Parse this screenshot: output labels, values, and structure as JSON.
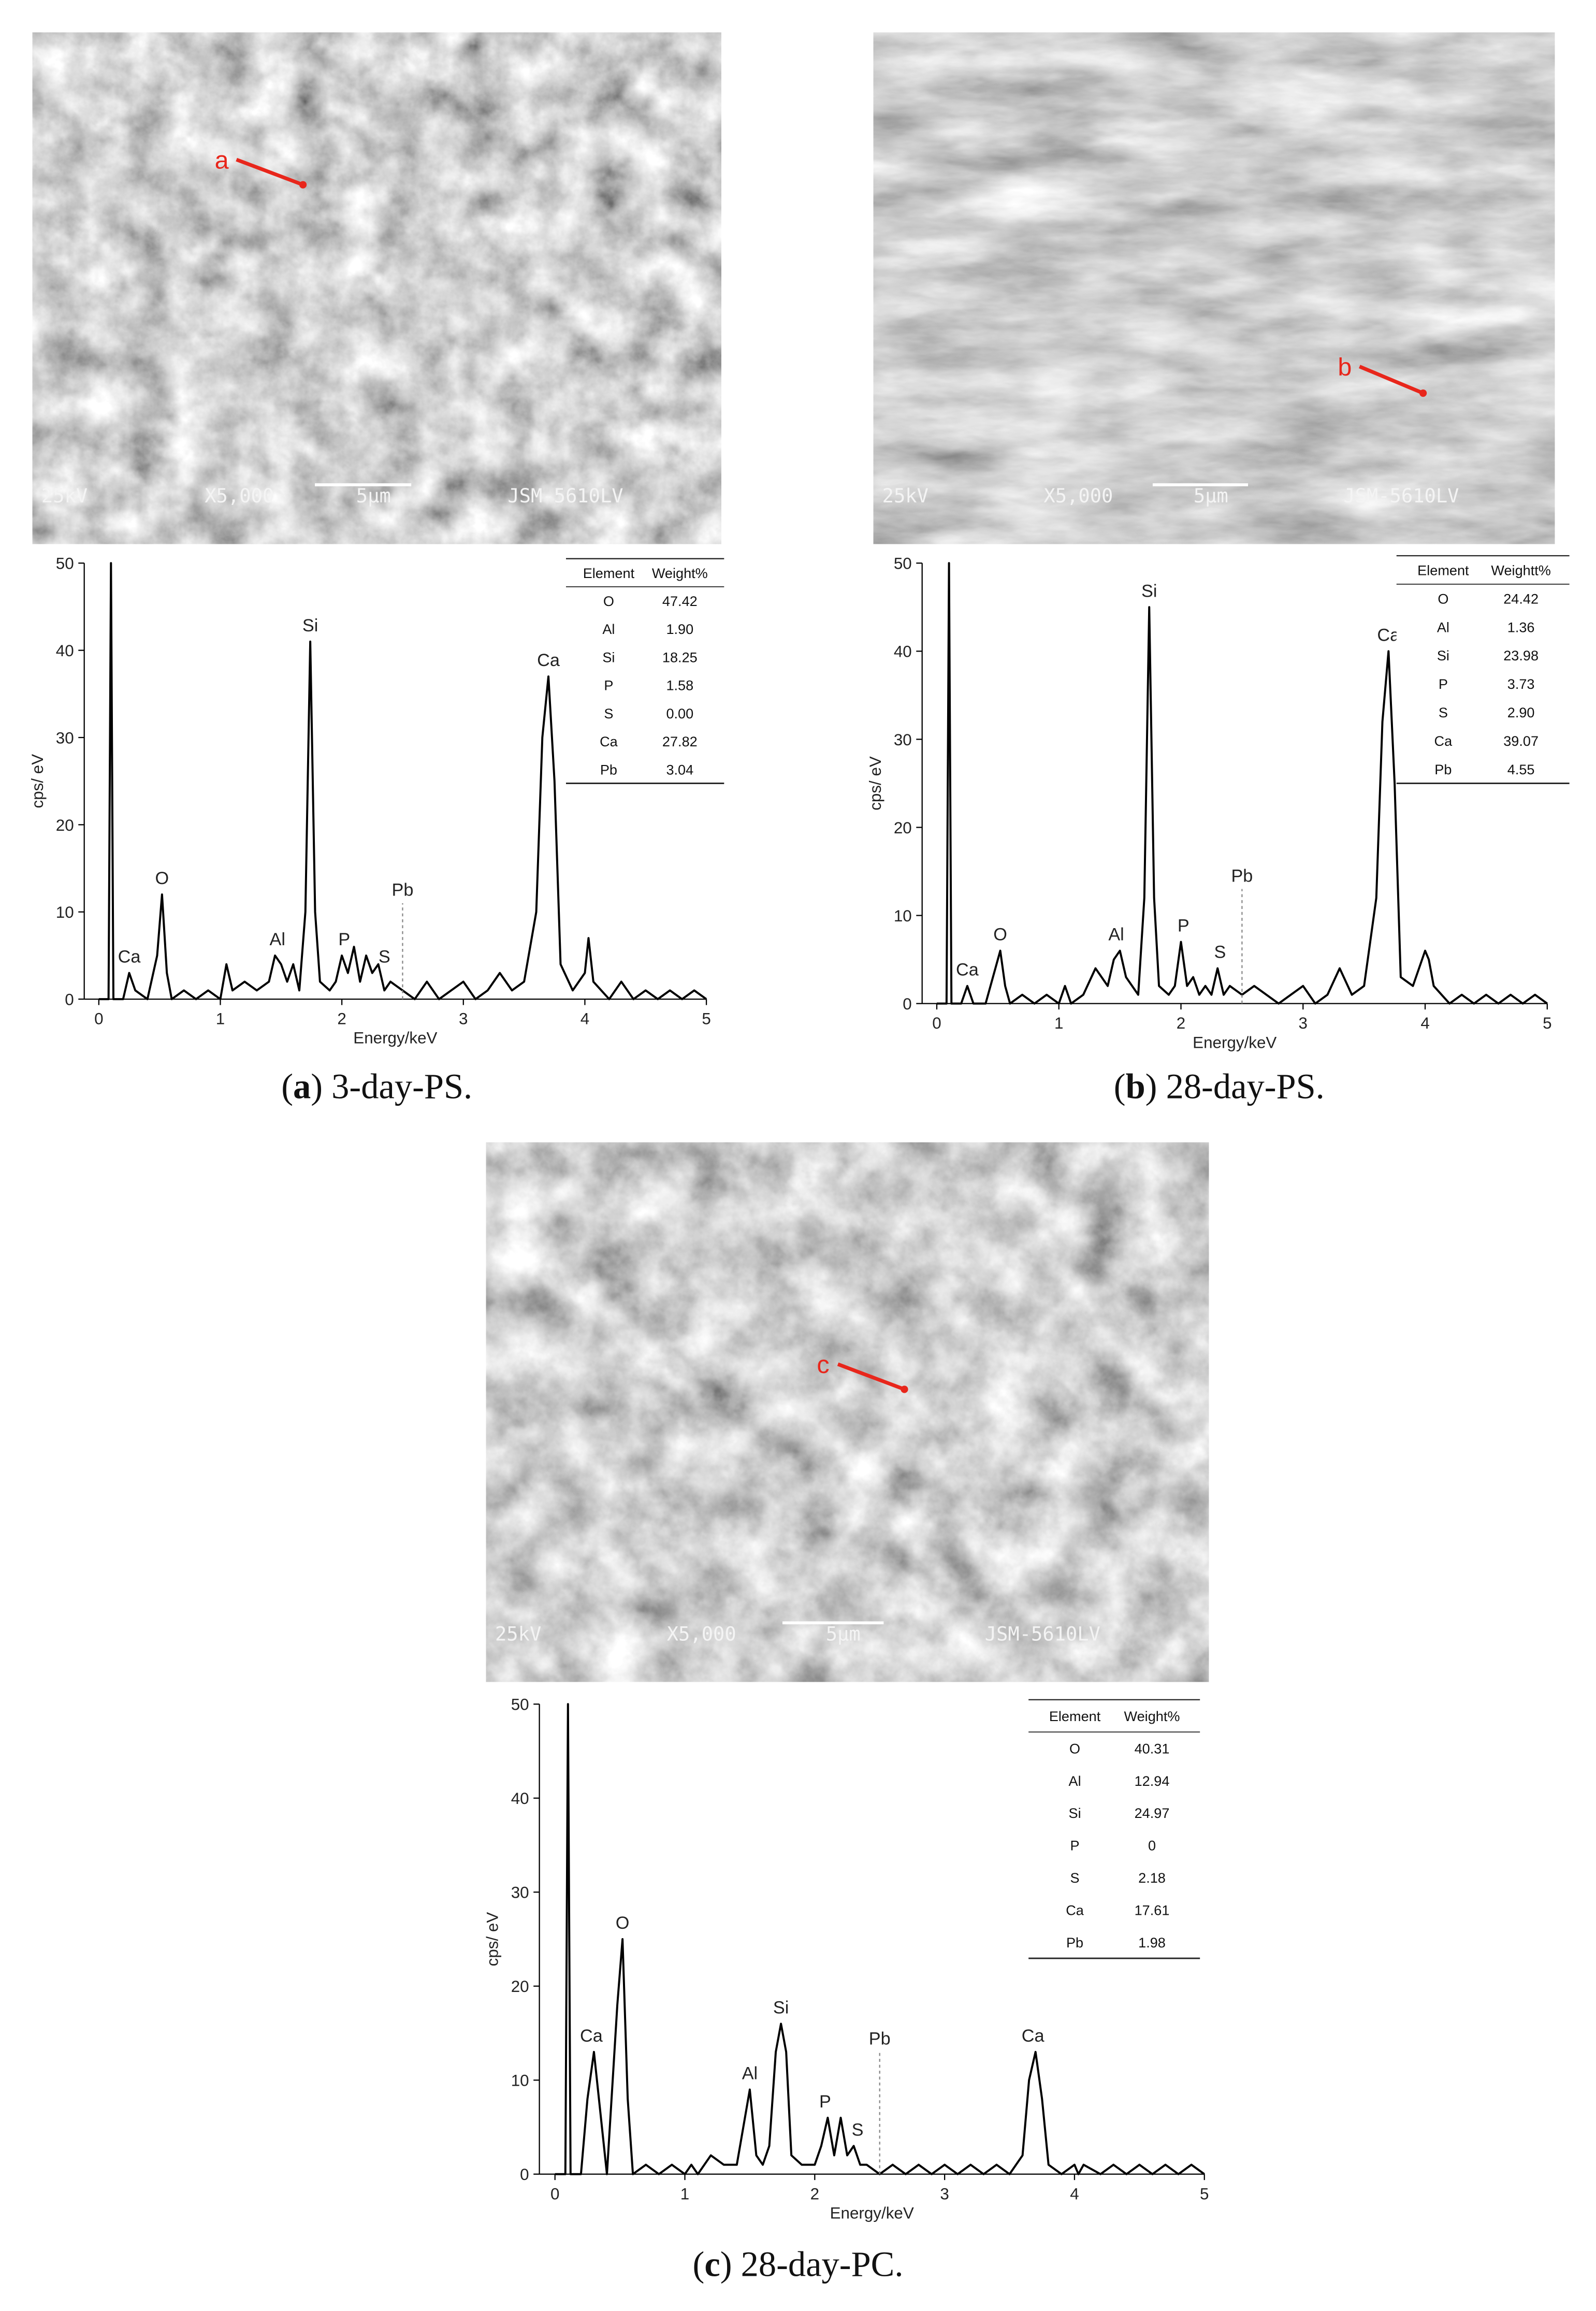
{
  "chart_data": [
    {
      "type": "line",
      "caption": [
        "(",
        "a",
        ") 3-day-PS."
      ],
      "sem": {
        "voltage": "25kV",
        "magnification": "X5,000",
        "scale": "5μm",
        "instrument": "JSM-5610LV",
        "point": "a"
      },
      "x_label": "Energy/keV",
      "y_label": "cps/ eV",
      "color": "#000000",
      "xlim": [
        -0.12,
        5
      ],
      "ylim": [
        0,
        50
      ],
      "xticks": [
        0,
        1,
        2,
        3,
        4,
        5
      ],
      "yticks": [
        0,
        10,
        20,
        30,
        40,
        50
      ],
      "x": [
        0,
        0.08,
        0.1,
        0.12,
        0.2,
        0.25,
        0.3,
        0.4,
        0.48,
        0.52,
        0.56,
        0.6,
        0.7,
        0.8,
        0.9,
        1.0,
        1.05,
        1.1,
        1.2,
        1.3,
        1.4,
        1.45,
        1.5,
        1.55,
        1.6,
        1.65,
        1.7,
        1.74,
        1.78,
        1.82,
        1.9,
        1.95,
        2.0,
        2.05,
        2.1,
        2.15,
        2.2,
        2.25,
        2.3,
        2.35,
        2.4,
        2.5,
        2.6,
        2.7,
        2.8,
        2.9,
        3.0,
        3.1,
        3.2,
        3.3,
        3.4,
        3.5,
        3.6,
        3.65,
        3.7,
        3.75,
        3.8,
        3.9,
        4.0,
        4.03,
        4.07,
        4.2,
        4.3,
        4.4,
        4.5,
        4.6,
        4.7,
        4.8,
        4.9,
        5.0
      ],
      "values": [
        0,
        0,
        50,
        0,
        0,
        3,
        1,
        0,
        5,
        12,
        3,
        0,
        1,
        0,
        1,
        0,
        4,
        1,
        2,
        1,
        2,
        5,
        4,
        2,
        4,
        1,
        10,
        41,
        10,
        2,
        1,
        2,
        5,
        3,
        6,
        2,
        5,
        3,
        4,
        1,
        2,
        1,
        0,
        2,
        0,
        1,
        2,
        0,
        1,
        3,
        1,
        2,
        10,
        30,
        37,
        25,
        4,
        1,
        3,
        7,
        2,
        0,
        2,
        0,
        1,
        0,
        1,
        0,
        1,
        0
      ],
      "peaks": [
        {
          "text": "Ca",
          "x": 0.25,
          "y": 3
        },
        {
          "text": "O",
          "x": 0.52,
          "y": 12
        },
        {
          "text": "Al",
          "x": 1.47,
          "y": 5
        },
        {
          "text": "Si",
          "x": 1.74,
          "y": 41
        },
        {
          "text": "P",
          "x": 2.02,
          "y": 5
        },
        {
          "text": "S",
          "x": 2.35,
          "y": 3
        },
        {
          "text": "Ca",
          "x": 3.7,
          "y": 37
        }
      ],
      "marker": {
        "text": "Pb",
        "x": 2.5,
        "y": 11
      },
      "table": {
        "header": [
          "Element",
          "Weight%"
        ],
        "rows": [
          [
            "O",
            "47.42"
          ],
          [
            "Al",
            "1.90"
          ],
          [
            "Si",
            "18.25"
          ],
          [
            "P",
            "1.58"
          ],
          [
            "S",
            "0.00"
          ],
          [
            "Ca",
            "27.82"
          ],
          [
            "Pb",
            "3.04"
          ]
        ]
      }
    },
    {
      "type": "line",
      "caption": [
        "(",
        "b",
        ") 28-day-PS."
      ],
      "sem": {
        "voltage": "25kV",
        "magnification": "X5,000",
        "scale": "5μm",
        "instrument": "JSM-5610LV",
        "point": "b"
      },
      "x_label": "Energy/keV",
      "y_label": "cps/ eV",
      "color": "#000000",
      "xlim": [
        -0.12,
        5
      ],
      "ylim": [
        0,
        50
      ],
      "xticks": [
        0,
        1,
        2,
        3,
        4,
        5
      ],
      "yticks": [
        0,
        10,
        20,
        30,
        40,
        50
      ],
      "x": [
        0,
        0.08,
        0.1,
        0.12,
        0.2,
        0.25,
        0.3,
        0.4,
        0.48,
        0.52,
        0.56,
        0.6,
        0.7,
        0.8,
        0.9,
        1.0,
        1.05,
        1.1,
        1.2,
        1.3,
        1.4,
        1.45,
        1.5,
        1.55,
        1.6,
        1.65,
        1.7,
        1.74,
        1.78,
        1.82,
        1.9,
        1.95,
        2.0,
        2.05,
        2.1,
        2.15,
        2.2,
        2.25,
        2.3,
        2.35,
        2.4,
        2.5,
        2.6,
        2.7,
        2.8,
        2.9,
        3.0,
        3.1,
        3.2,
        3.3,
        3.4,
        3.5,
        3.6,
        3.65,
        3.7,
        3.75,
        3.8,
        3.9,
        4.0,
        4.03,
        4.07,
        4.2,
        4.3,
        4.4,
        4.5,
        4.6,
        4.7,
        4.8,
        4.9,
        5.0
      ],
      "values": [
        0,
        0,
        50,
        0,
        0,
        2,
        0,
        0,
        4,
        6,
        2,
        0,
        1,
        0,
        1,
        0,
        2,
        0,
        1,
        4,
        2,
        5,
        6,
        3,
        2,
        1,
        12,
        45,
        12,
        2,
        1,
        2,
        7,
        2,
        3,
        1,
        2,
        1,
        4,
        1,
        2,
        1,
        2,
        1,
        0,
        1,
        2,
        0,
        1,
        4,
        1,
        2,
        12,
        32,
        40,
        25,
        3,
        2,
        6,
        5,
        2,
        0,
        1,
        0,
        1,
        0,
        1,
        0,
        1,
        0
      ],
      "peaks": [
        {
          "text": "Ca",
          "x": 0.25,
          "y": 2
        },
        {
          "text": "O",
          "x": 0.52,
          "y": 6
        },
        {
          "text": "Al",
          "x": 1.47,
          "y": 6
        },
        {
          "text": "Si",
          "x": 1.74,
          "y": 45
        },
        {
          "text": "P",
          "x": 2.02,
          "y": 7
        },
        {
          "text": "S",
          "x": 2.32,
          "y": 4
        },
        {
          "text": "Ca",
          "x": 3.7,
          "y": 40
        }
      ],
      "marker": {
        "text": "Pb",
        "x": 2.5,
        "y": 13
      },
      "table": {
        "header": [
          "Element",
          "Weightt%"
        ],
        "rows": [
          [
            "O",
            "24.42"
          ],
          [
            "Al",
            "1.36"
          ],
          [
            "Si",
            "23.98"
          ],
          [
            "P",
            "3.73"
          ],
          [
            "S",
            "2.90"
          ],
          [
            "Ca",
            "39.07"
          ],
          [
            "Pb",
            "4.55"
          ]
        ]
      }
    },
    {
      "type": "line",
      "caption": [
        "(",
        "c",
        ") 28-day-PC."
      ],
      "sem": {
        "voltage": "25kV",
        "magnification": "X5,000",
        "scale": "5μm",
        "instrument": "JSM-5610LV",
        "point": "c"
      },
      "x_label": "Energy/keV",
      "y_label": "cps/ eV",
      "color": "#000000",
      "xlim": [
        -0.12,
        5
      ],
      "ylim": [
        0,
        50
      ],
      "xticks": [
        0,
        1,
        2,
        3,
        4,
        5
      ],
      "yticks": [
        0,
        10,
        20,
        30,
        40,
        50
      ],
      "x": [
        0,
        0.08,
        0.1,
        0.12,
        0.2,
        0.25,
        0.3,
        0.4,
        0.48,
        0.52,
        0.56,
        0.6,
        0.7,
        0.8,
        0.9,
        1.0,
        1.05,
        1.1,
        1.2,
        1.3,
        1.4,
        1.45,
        1.5,
        1.55,
        1.6,
        1.65,
        1.7,
        1.74,
        1.78,
        1.82,
        1.9,
        1.95,
        2.0,
        2.05,
        2.1,
        2.15,
        2.2,
        2.25,
        2.3,
        2.35,
        2.4,
        2.5,
        2.6,
        2.7,
        2.8,
        2.9,
        3.0,
        3.1,
        3.2,
        3.3,
        3.4,
        3.5,
        3.6,
        3.65,
        3.7,
        3.75,
        3.8,
        3.9,
        4.0,
        4.03,
        4.07,
        4.2,
        4.3,
        4.4,
        4.5,
        4.6,
        4.7,
        4.8,
        4.9,
        5.0
      ],
      "values": [
        0,
        0,
        50,
        0,
        0,
        8,
        13,
        0,
        18,
        25,
        8,
        0,
        1,
        0,
        1,
        0,
        1,
        0,
        2,
        1,
        1,
        5,
        9,
        2,
        1,
        3,
        13,
        16,
        13,
        2,
        1,
        1,
        1,
        3,
        6,
        2,
        6,
        2,
        3,
        1,
        1,
        0,
        1,
        0,
        1,
        0,
        1,
        0,
        1,
        0,
        1,
        0,
        2,
        10,
        13,
        8,
        1,
        0,
        1,
        0,
        1,
        0,
        1,
        0,
        1,
        0,
        1,
        0,
        1,
        0
      ],
      "peaks": [
        {
          "text": "Ca",
          "x": 0.28,
          "y": 13
        },
        {
          "text": "O",
          "x": 0.52,
          "y": 25
        },
        {
          "text": "Al",
          "x": 1.5,
          "y": 9
        },
        {
          "text": "Si",
          "x": 1.74,
          "y": 16
        },
        {
          "text": "P",
          "x": 2.08,
          "y": 6
        },
        {
          "text": "S",
          "x": 2.33,
          "y": 3
        },
        {
          "text": "Ca",
          "x": 3.68,
          "y": 13
        }
      ],
      "marker": {
        "text": "Pb",
        "x": 2.5,
        "y": 13
      },
      "table": {
        "header": [
          "Element",
          "Weight%"
        ],
        "rows": [
          [
            "O",
            "40.31"
          ],
          [
            "Al",
            "12.94"
          ],
          [
            "Si",
            "24.97"
          ],
          [
            "P",
            "0"
          ],
          [
            "S",
            "2.18"
          ],
          [
            "Ca",
            "17.61"
          ],
          [
            "Pb",
            "1.98"
          ]
        ]
      }
    }
  ]
}
